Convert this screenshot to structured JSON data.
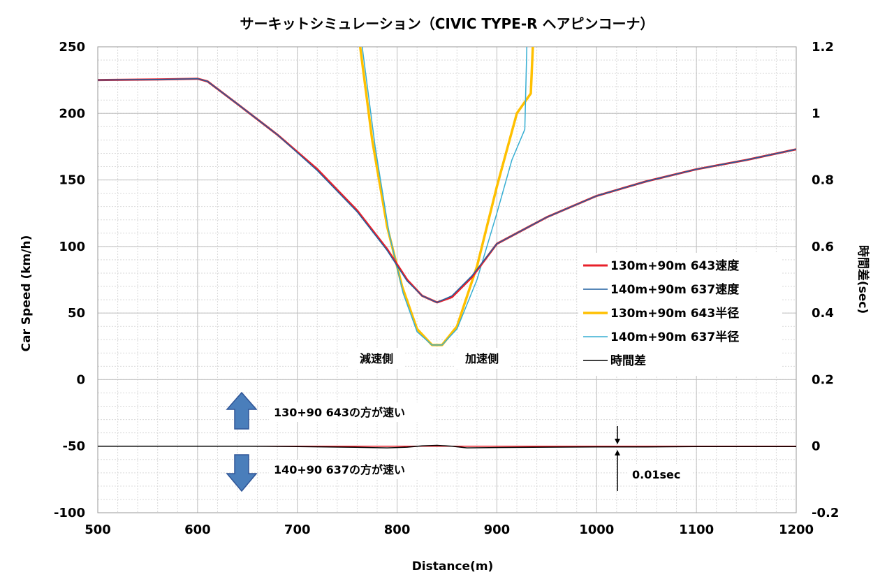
{
  "chart_data": {
    "type": "line",
    "title": "サーキットシミュレーション（CIVIC TYPE-R ヘアピンコーナ）",
    "xlabel": "Distance(m)",
    "ylabel_left": "Car Speed (km/h)",
    "ylabel_right": "時間差(sec)",
    "xlim": [
      500,
      1200
    ],
    "ylim_left": [
      -100,
      250
    ],
    "ylim_right": [
      -0.2,
      1.2
    ],
    "x_ticks": [
      "500",
      "600",
      "700",
      "800",
      "900",
      "1000",
      "1100",
      "1200"
    ],
    "y_ticks_left": [
      "-100",
      "-50",
      "0",
      "50",
      "100",
      "150",
      "200",
      "250"
    ],
    "y_ticks_right": [
      "-0.2",
      "0",
      "0.2",
      "0.4",
      "0.6",
      "0.8",
      "1",
      "1.2"
    ],
    "grid": true,
    "legend_position": "right-middle",
    "series": [
      {
        "name": "130m+90m 643速度",
        "axis": "left",
        "color": "#e8202a",
        "x": [
          500,
          560,
          600,
          610,
          640,
          680,
          720,
          760,
          790,
          810,
          825,
          840,
          855,
          875,
          900,
          950,
          1000,
          1050,
          1100,
          1150,
          1200
        ],
        "y": [
          225,
          225.5,
          226,
          224,
          207,
          184,
          158,
          127,
          98,
          75,
          63,
          58,
          62,
          77,
          102,
          122,
          138,
          149,
          158,
          165,
          173
        ]
      },
      {
        "name": "140m+90m 637速度",
        "axis": "left",
        "color": "#1f5f9f",
        "x": [
          500,
          560,
          600,
          610,
          640,
          680,
          720,
          760,
          790,
          810,
          825,
          840,
          855,
          875,
          900,
          950,
          1000,
          1050,
          1100,
          1150,
          1200
        ],
        "y": [
          225,
          225.5,
          226,
          224,
          207,
          184,
          157,
          126,
          97,
          74,
          63,
          58,
          63,
          78,
          102,
          122,
          138,
          149,
          158,
          165,
          173
        ]
      },
      {
        "name": "130m+90m 643半径",
        "axis": "left",
        "color": "#ffc000",
        "x": [
          763,
          775,
          790,
          805,
          820,
          835,
          845,
          860,
          880,
          900,
          920,
          934,
          936
        ],
        "y": [
          250,
          180,
          115,
          70,
          38,
          26,
          26,
          40,
          85,
          145,
          200,
          215,
          250
        ]
      },
      {
        "name": "140m+90m 637半径",
        "axis": "left",
        "color": "#36aed2",
        "x": [
          765,
          778,
          792,
          806,
          820,
          835,
          845,
          860,
          880,
          900,
          915,
          928,
          930
        ],
        "y": [
          250,
          175,
          110,
          65,
          36,
          26,
          26,
          38,
          75,
          125,
          165,
          188,
          250
        ]
      },
      {
        "name": "時間差",
        "axis": "right",
        "color": "#000000",
        "x": [
          500,
          650,
          700,
          750,
          790,
          810,
          825,
          840,
          855,
          870,
          900,
          950,
          1000,
          1050,
          1100,
          1200
        ],
        "y": [
          0,
          0,
          -0.001,
          -0.003,
          -0.005,
          -0.003,
          0.001,
          0.0025,
          0,
          -0.005,
          -0.004,
          -0.003,
          -0.002,
          -0.002,
          -0.001,
          -0.001
        ]
      }
    ],
    "reference_line": {
      "axis": "right",
      "y": 0,
      "color": "#e8202a"
    },
    "annotations": {
      "decel": "減速側",
      "accel": "加速側",
      "faster_643": "130+90 643の方が速い",
      "faster_637": "140+90 637の方が速い",
      "diff_scale": "0.01sec"
    }
  }
}
